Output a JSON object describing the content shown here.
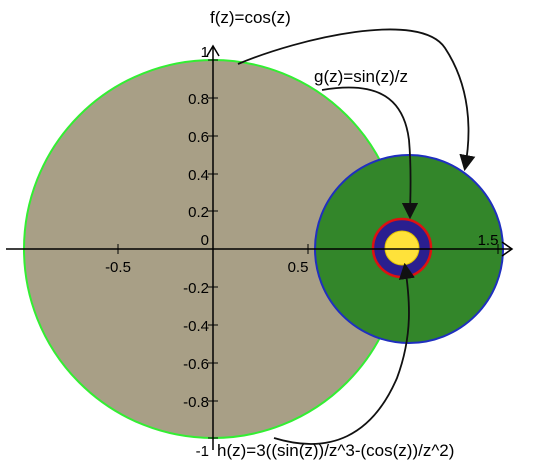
{
  "labels": {
    "f": "f(z)=cos(z)",
    "g": "g(z)=sin(z)/z",
    "h": "h(z)=3((sin(z))/z^3-(cos(z))/z^2)"
  },
  "axes": {
    "x_ticks": [
      "-0.5",
      "0.5",
      "1.5"
    ],
    "y_ticks": [
      "1",
      "0.8",
      "0.6",
      "0.4",
      "0.2",
      "0",
      "-0.2",
      "-0.4",
      "-0.6",
      "-0.8",
      "-1"
    ]
  },
  "colors": {
    "f_disc_fill": "#a89f86",
    "f_disc_stroke": "#33ee33",
    "g_disc_fill": "#33862a",
    "g_disc_stroke": "#1f2fbf",
    "h_ring_outer": "#2a1f8f",
    "h_ring_stroke": "#dd1111",
    "h_inner": "#ffe23a",
    "arrow": "#111111"
  }
}
